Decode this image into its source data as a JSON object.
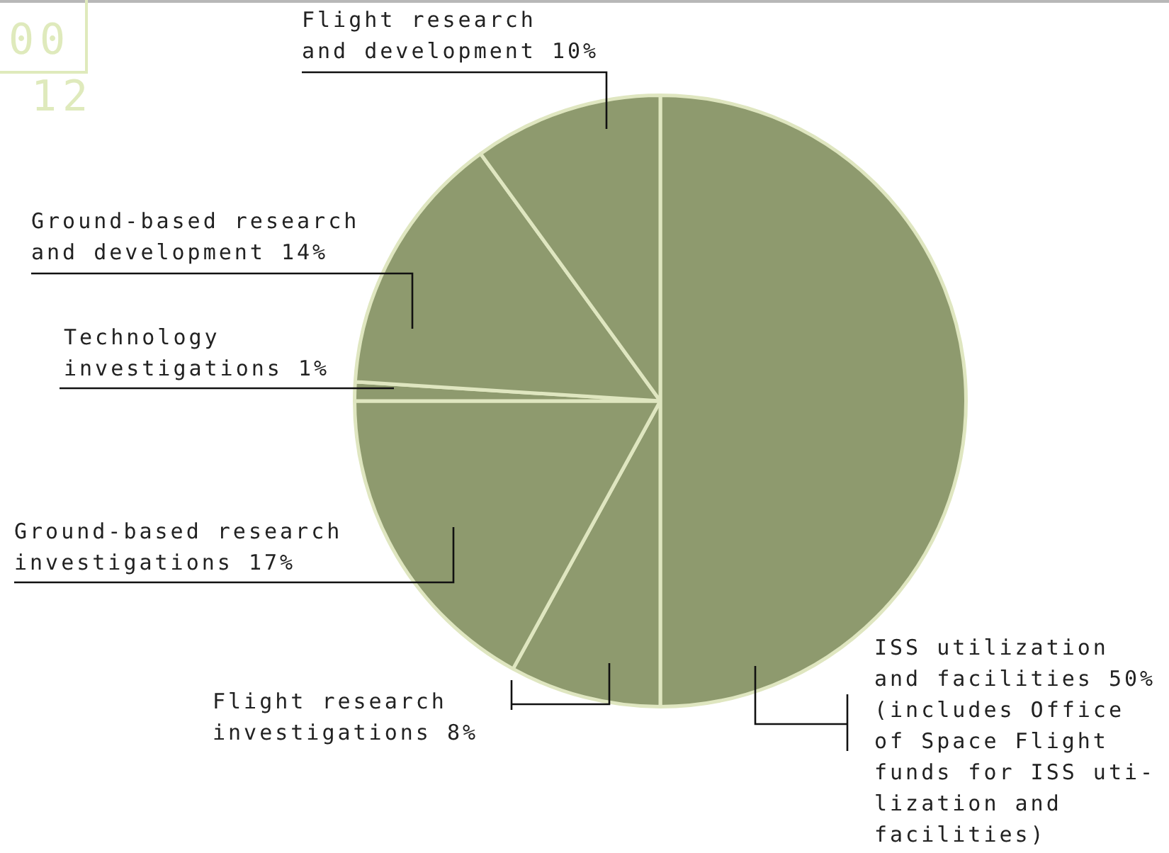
{
  "chart_data": {
    "type": "pie",
    "categories": [
      "ISS utilization\nand facilities 50%",
      "Flight research\ninvestigations 8%",
      "Ground-based research\ninvestigations 17%",
      "Technology\ninvestigations 1%",
      "Ground-based research\nand development 14%",
      "Flight research\nand development 10%"
    ],
    "values": [
      50,
      8,
      17,
      1,
      14,
      10
    ],
    "colors": [
      "#8e9a6e",
      "#8e9a6e",
      "#8e9a6e",
      "#8e9a6e",
      "#8e9a6e",
      "#8e9a6e"
    ],
    "legend": false,
    "annotations": [
      "(includes Office\nof Space Flight\nfunds for ISS uti-\nlization and\nfacilities)",
      "00\n12"
    ]
  }
}
